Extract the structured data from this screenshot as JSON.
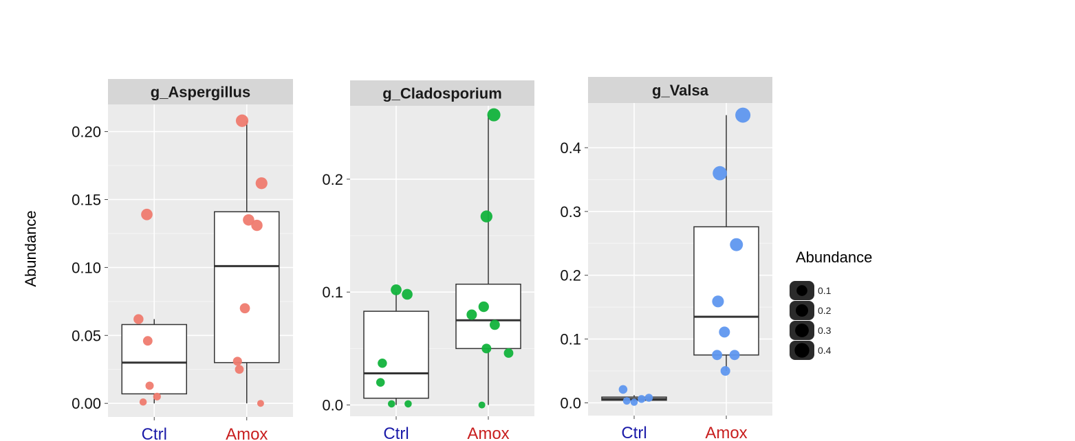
{
  "chart_data": {
    "type": "boxplot",
    "ylabel": "Abundance",
    "categories": [
      "Ctrl",
      "Amox"
    ],
    "category_colors": [
      "#1a1aa8",
      "#c81e1e"
    ],
    "legend": {
      "title": "Abundance",
      "placement": "right",
      "entries": [
        "0.1",
        "0.2",
        "0.3",
        "0.4"
      ],
      "sizes": [
        0.1,
        0.2,
        0.3,
        0.4
      ],
      "color": "#222222"
    },
    "panels": [
      {
        "title": "g_Aspergillus",
        "color": "#ef7b6f",
        "ylim": [
          -0.01,
          0.22
        ],
        "yticks": [
          0.0,
          0.05,
          0.1,
          0.15,
          0.2
        ],
        "ytick_labels": [
          "0.00",
          "0.05",
          "0.10",
          "0.15",
          "0.20"
        ],
        "boxes": [
          {
            "category": "Ctrl",
            "whisker_low": 0.0,
            "q1": 0.007,
            "median": 0.03,
            "q3": 0.058,
            "whisker_high": 0.062
          },
          {
            "category": "Amox",
            "whisker_low": 0.0,
            "q1": 0.03,
            "median": 0.101,
            "q3": 0.141,
            "whisker_high": 0.208
          }
        ],
        "points": [
          {
            "category": "Ctrl",
            "jitter": -0.08,
            "value": 0.139
          },
          {
            "category": "Ctrl",
            "jitter": -0.17,
            "value": 0.062
          },
          {
            "category": "Ctrl",
            "jitter": -0.07,
            "value": 0.046
          },
          {
            "category": "Ctrl",
            "jitter": -0.05,
            "value": 0.013
          },
          {
            "category": "Ctrl",
            "jitter": 0.03,
            "value": 0.005
          },
          {
            "category": "Ctrl",
            "jitter": -0.12,
            "value": 0.001
          },
          {
            "category": "Amox",
            "jitter": -0.05,
            "value": 0.208
          },
          {
            "category": "Amox",
            "jitter": 0.16,
            "value": 0.162
          },
          {
            "category": "Amox",
            "jitter": 0.02,
            "value": 0.135
          },
          {
            "category": "Amox",
            "jitter": 0.11,
            "value": 0.131
          },
          {
            "category": "Amox",
            "jitter": -0.02,
            "value": 0.07
          },
          {
            "category": "Amox",
            "jitter": -0.1,
            "value": 0.031
          },
          {
            "category": "Amox",
            "jitter": -0.08,
            "value": 0.025
          },
          {
            "category": "Amox",
            "jitter": 0.15,
            "value": 0.0
          }
        ]
      },
      {
        "title": "g_Cladosporium",
        "color": "#12b33c",
        "ylim": [
          -0.01,
          0.265
        ],
        "yticks": [
          0.0,
          0.1,
          0.2
        ],
        "ytick_labels": [
          "0.0",
          "0.1",
          "0.2"
        ],
        "boxes": [
          {
            "category": "Ctrl",
            "whisker_low": 0.0,
            "q1": 0.006,
            "median": 0.028,
            "q3": 0.083,
            "whisker_high": 0.1
          },
          {
            "category": "Amox",
            "whisker_low": 0.0,
            "q1": 0.05,
            "median": 0.075,
            "q3": 0.107,
            "whisker_high": 0.257
          }
        ],
        "points": [
          {
            "category": "Ctrl",
            "jitter": 0.0,
            "value": 0.102
          },
          {
            "category": "Ctrl",
            "jitter": 0.12,
            "value": 0.098
          },
          {
            "category": "Ctrl",
            "jitter": -0.15,
            "value": 0.037
          },
          {
            "category": "Ctrl",
            "jitter": -0.17,
            "value": 0.02
          },
          {
            "category": "Ctrl",
            "jitter": -0.05,
            "value": 0.001
          },
          {
            "category": "Ctrl",
            "jitter": 0.13,
            "value": 0.001
          },
          {
            "category": "Amox",
            "jitter": 0.06,
            "value": 0.257
          },
          {
            "category": "Amox",
            "jitter": -0.02,
            "value": 0.167
          },
          {
            "category": "Amox",
            "jitter": -0.05,
            "value": 0.087
          },
          {
            "category": "Amox",
            "jitter": -0.18,
            "value": 0.08
          },
          {
            "category": "Amox",
            "jitter": 0.07,
            "value": 0.071
          },
          {
            "category": "Amox",
            "jitter": -0.02,
            "value": 0.05
          },
          {
            "category": "Amox",
            "jitter": 0.22,
            "value": 0.046
          },
          {
            "category": "Amox",
            "jitter": -0.07,
            "value": 0.0
          }
        ]
      },
      {
        "title": "g_Valsa",
        "color": "#5f97ef",
        "ylim": [
          -0.02,
          0.47
        ],
        "yticks": [
          0.0,
          0.1,
          0.2,
          0.3,
          0.4
        ],
        "ytick_labels": [
          "0.0",
          "0.1",
          "0.2",
          "0.3",
          "0.4"
        ],
        "boxes": [
          {
            "category": "Ctrl",
            "whisker_low": 0.002,
            "q1": 0.004,
            "median": 0.006,
            "q3": 0.009,
            "whisker_high": 0.012
          },
          {
            "category": "Amox",
            "whisker_low": 0.05,
            "q1": 0.075,
            "median": 0.135,
            "q3": 0.276,
            "whisker_high": 0.451
          }
        ],
        "points": [
          {
            "category": "Ctrl",
            "jitter": -0.12,
            "value": 0.021
          },
          {
            "category": "Ctrl",
            "jitter": 0.16,
            "value": 0.008
          },
          {
            "category": "Ctrl",
            "jitter": 0.08,
            "value": 0.006
          },
          {
            "category": "Ctrl",
            "jitter": -0.08,
            "value": 0.003
          },
          {
            "category": "Ctrl",
            "jitter": 0.0,
            "value": 0.001
          },
          {
            "category": "Amox",
            "jitter": 0.18,
            "value": 0.451
          },
          {
            "category": "Amox",
            "jitter": -0.07,
            "value": 0.36
          },
          {
            "category": "Amox",
            "jitter": 0.11,
            "value": 0.248
          },
          {
            "category": "Amox",
            "jitter": -0.09,
            "value": 0.159
          },
          {
            "category": "Amox",
            "jitter": -0.02,
            "value": 0.111
          },
          {
            "category": "Amox",
            "jitter": -0.1,
            "value": 0.075
          },
          {
            "category": "Amox",
            "jitter": 0.09,
            "value": 0.075
          },
          {
            "category": "Amox",
            "jitter": -0.01,
            "value": 0.05
          }
        ]
      }
    ]
  }
}
